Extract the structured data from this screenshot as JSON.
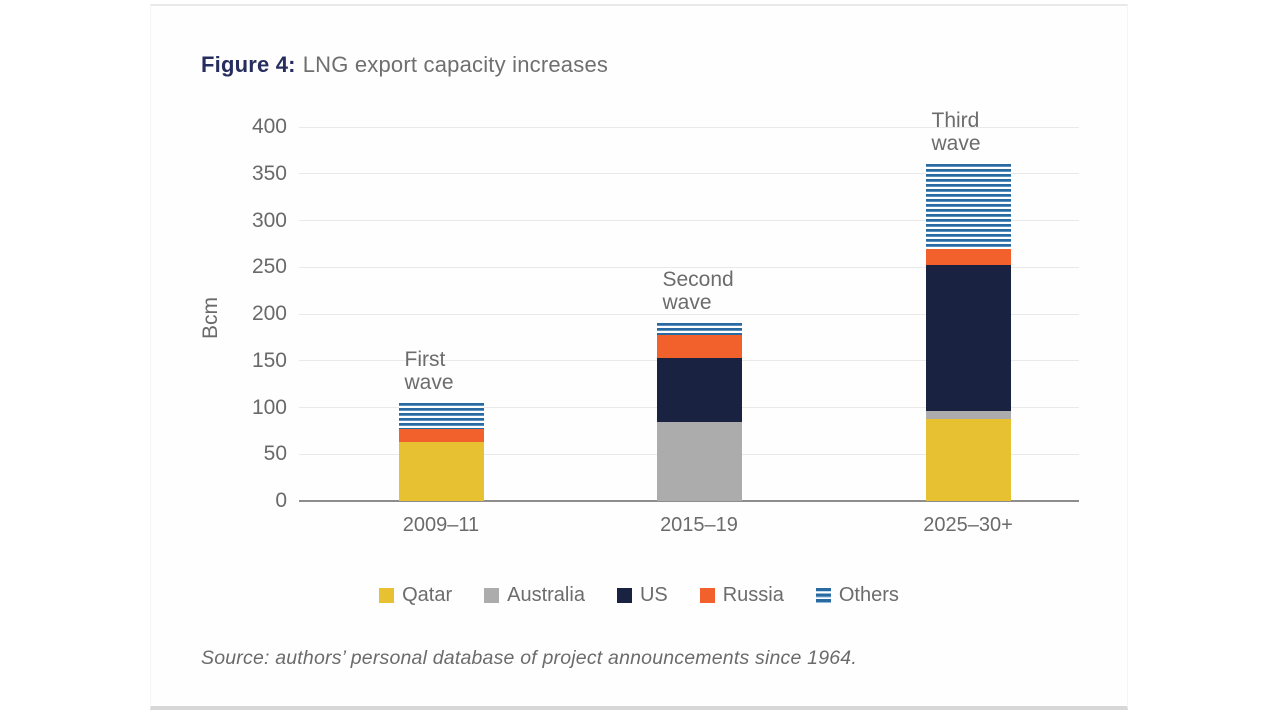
{
  "figure": {
    "label": "Figure 4:",
    "title": "LNG export capacity increases"
  },
  "chart_data": {
    "type": "bar",
    "stacked": true,
    "title": "Figure 4: LNG export capacity increases",
    "ylabel": "Bcm",
    "ylim": [
      0,
      400
    ],
    "ytick_step": 50,
    "grid": "horizontal-gridlines",
    "legend_position": "bottom",
    "categories": [
      "2009–11",
      "2015–19",
      "2025–30+"
    ],
    "series": [
      {
        "name": "Qatar",
        "color": "#e8c132",
        "pattern": "solid",
        "values": [
          63,
          0,
          88
        ]
      },
      {
        "name": "Australia",
        "color": "#acacac",
        "pattern": "solid",
        "values": [
          0,
          85,
          8
        ]
      },
      {
        "name": "US",
        "color": "#1a2241",
        "pattern": "solid",
        "values": [
          0,
          68,
          156
        ]
      },
      {
        "name": "Russia",
        "color": "#f2612c",
        "pattern": "solid",
        "values": [
          14,
          25,
          18
        ]
      },
      {
        "name": "Others",
        "color": "#2a6aa2",
        "pattern": "horizontal-stripes",
        "values": [
          28,
          12,
          90
        ]
      }
    ],
    "annotations": [
      {
        "lines": [
          "First",
          "wave"
        ],
        "category": "2009–11"
      },
      {
        "lines": [
          "Second",
          "wave"
        ],
        "category": "2015–19"
      },
      {
        "lines": [
          "Third",
          "wave"
        ],
        "category": "2025–30+"
      }
    ]
  },
  "source": "Source: authors’ personal database of project announcements since 1964."
}
